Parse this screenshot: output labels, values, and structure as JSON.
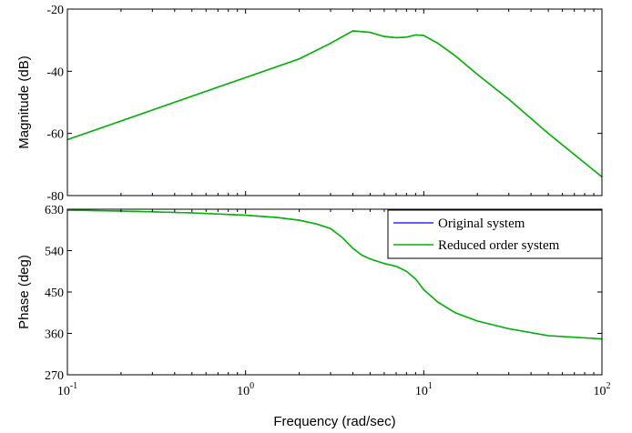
{
  "chart_data": [
    {
      "type": "line",
      "panel": "magnitude",
      "ylabel": "Magnitude (dB)",
      "xlabel": "",
      "xscale": "log",
      "xlim": [
        0.1,
        100
      ],
      "ylim": [
        -80,
        -20
      ],
      "yticks": [
        -80,
        -60,
        -40,
        -20
      ],
      "grid": false,
      "series": [
        {
          "name": "Original system",
          "color": "#0000ff",
          "x": [
            0.1,
            0.2,
            0.5,
            1,
            2,
            3,
            4,
            5,
            6,
            7,
            8,
            9,
            10,
            12,
            15,
            20,
            30,
            50,
            100
          ],
          "y": [
            -62,
            -56,
            -48,
            -42,
            -36,
            -31,
            -27,
            -27.5,
            -28.8,
            -29.2,
            -29,
            -28.3,
            -28.5,
            -31,
            -35,
            -41,
            -49,
            -60,
            -74
          ]
        },
        {
          "name": "Reduced order system",
          "color": "#00b400",
          "x": [
            0.1,
            0.2,
            0.5,
            1,
            2,
            3,
            4,
            5,
            6,
            7,
            8,
            9,
            10,
            12,
            15,
            20,
            30,
            50,
            100
          ],
          "y": [
            -62,
            -56,
            -48,
            -42,
            -36,
            -31,
            -27,
            -27.5,
            -28.8,
            -29.2,
            -29,
            -28.3,
            -28.5,
            -31,
            -35,
            -41,
            -49,
            -60,
            -74
          ]
        }
      ]
    },
    {
      "type": "line",
      "panel": "phase",
      "ylabel": "Phase (deg)",
      "xlabel": "Frequency (rad/sec)",
      "xscale": "log",
      "xlim": [
        0.1,
        100
      ],
      "ylim": [
        270,
        630
      ],
      "yticks": [
        270,
        360,
        450,
        540,
        630
      ],
      "grid": false,
      "legend_position": "top-right",
      "series": [
        {
          "name": "Original system",
          "color": "#0000ff",
          "x": [
            0.1,
            0.2,
            0.5,
            1,
            1.5,
            2,
            2.5,
            3,
            3.5,
            4,
            4.5,
            5,
            6,
            7,
            8,
            9,
            10,
            12,
            15,
            20,
            30,
            50,
            100
          ],
          "y": [
            628,
            626,
            622,
            617,
            612,
            606,
            598,
            588,
            568,
            545,
            530,
            522,
            512,
            506,
            495,
            478,
            455,
            428,
            405,
            387,
            370,
            355,
            348
          ]
        },
        {
          "name": "Reduced order system",
          "color": "#00b400",
          "x": [
            0.1,
            0.2,
            0.5,
            1,
            1.5,
            2,
            2.5,
            3,
            3.5,
            4,
            4.5,
            5,
            6,
            7,
            8,
            9,
            10,
            12,
            15,
            20,
            30,
            50,
            100
          ],
          "y": [
            628,
            626,
            622,
            617,
            612,
            606,
            598,
            588,
            568,
            545,
            530,
            522,
            512,
            506,
            495,
            478,
            455,
            428,
            405,
            387,
            370,
            355,
            348
          ]
        }
      ]
    }
  ],
  "xtick_labels": {
    "base": "10",
    "exponents": [
      "-1",
      "0",
      "1",
      "2"
    ]
  },
  "legend": {
    "items": [
      "Original system",
      "Reduced order system"
    ]
  }
}
